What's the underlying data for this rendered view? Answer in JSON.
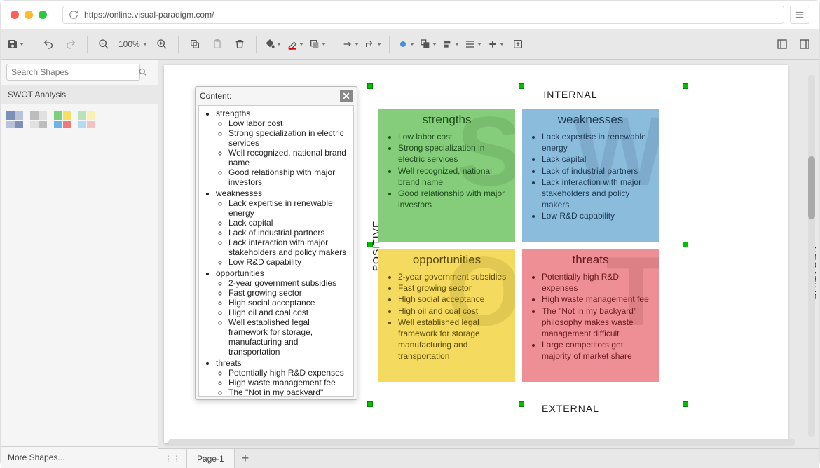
{
  "browser": {
    "url": "https://online.visual-paradigm.com/"
  },
  "toolbar": {
    "zoom": "100%"
  },
  "sidebar": {
    "search_placeholder": "Search Shapes",
    "section_title": "SWOT Analysis",
    "more_shapes": "More Shapes...",
    "swatches": [
      [
        "#7e8fb8",
        "#b8c3db",
        "#b8c3db",
        "#7e8fb8"
      ],
      [
        "#bdbdbd",
        "#e0e0e0",
        "#e0e0e0",
        "#bdbdbd"
      ],
      [
        "#7bd17b",
        "#f5df65",
        "#6fb2e6",
        "#ed7b7b"
      ],
      [
        "#b9e4b9",
        "#faf0b0",
        "#b6d8f2",
        "#f6c1c1"
      ]
    ]
  },
  "content_panel": {
    "title": "Content:"
  },
  "swot": {
    "axis": {
      "top": "INTERNAL",
      "bottom": "EXTERNAL",
      "left": "POSITIVE",
      "right": "NEGATIVE"
    },
    "quadrants": {
      "strengths": {
        "title": "strengths",
        "watermark": "S",
        "bg": "#85cd7a",
        "text": "#1e4e1e",
        "items": [
          "Low labor cost",
          "Strong specialization in electric services",
          "Well recognized, national brand name",
          "Good relationship with major investors"
        ]
      },
      "weaknesses": {
        "title": "weaknesses",
        "watermark": "W",
        "bg": "#8cbcdc",
        "text": "#1c3a55",
        "items": [
          "Lack expertise in renewable energy",
          "Lack capital",
          "Lack of industrial partners",
          "Lack interaction with major stakeholders and policy makers",
          "Low R&D capability"
        ]
      },
      "opportunities": {
        "title": "opportunities",
        "watermark": "O",
        "bg": "#f4da5f",
        "text": "#5a4a00",
        "items": [
          "2-year government subsidies",
          "Fast growing sector",
          "High social acceptance",
          "High oil and coal cost",
          "Well established legal framework for storage, manufacturing and transportation"
        ]
      },
      "threats": {
        "title": "threats",
        "watermark": "T",
        "bg": "#ed8f94",
        "text": "#6a1a1f",
        "items": [
          "Potentially high R&D expenses",
          "High waste management fee",
          "The \"Not in my backyard\" philosophy makes waste management difficult",
          "Large competitors get majority of market share"
        ]
      }
    }
  },
  "pages": {
    "tab1": "Page-1"
  }
}
